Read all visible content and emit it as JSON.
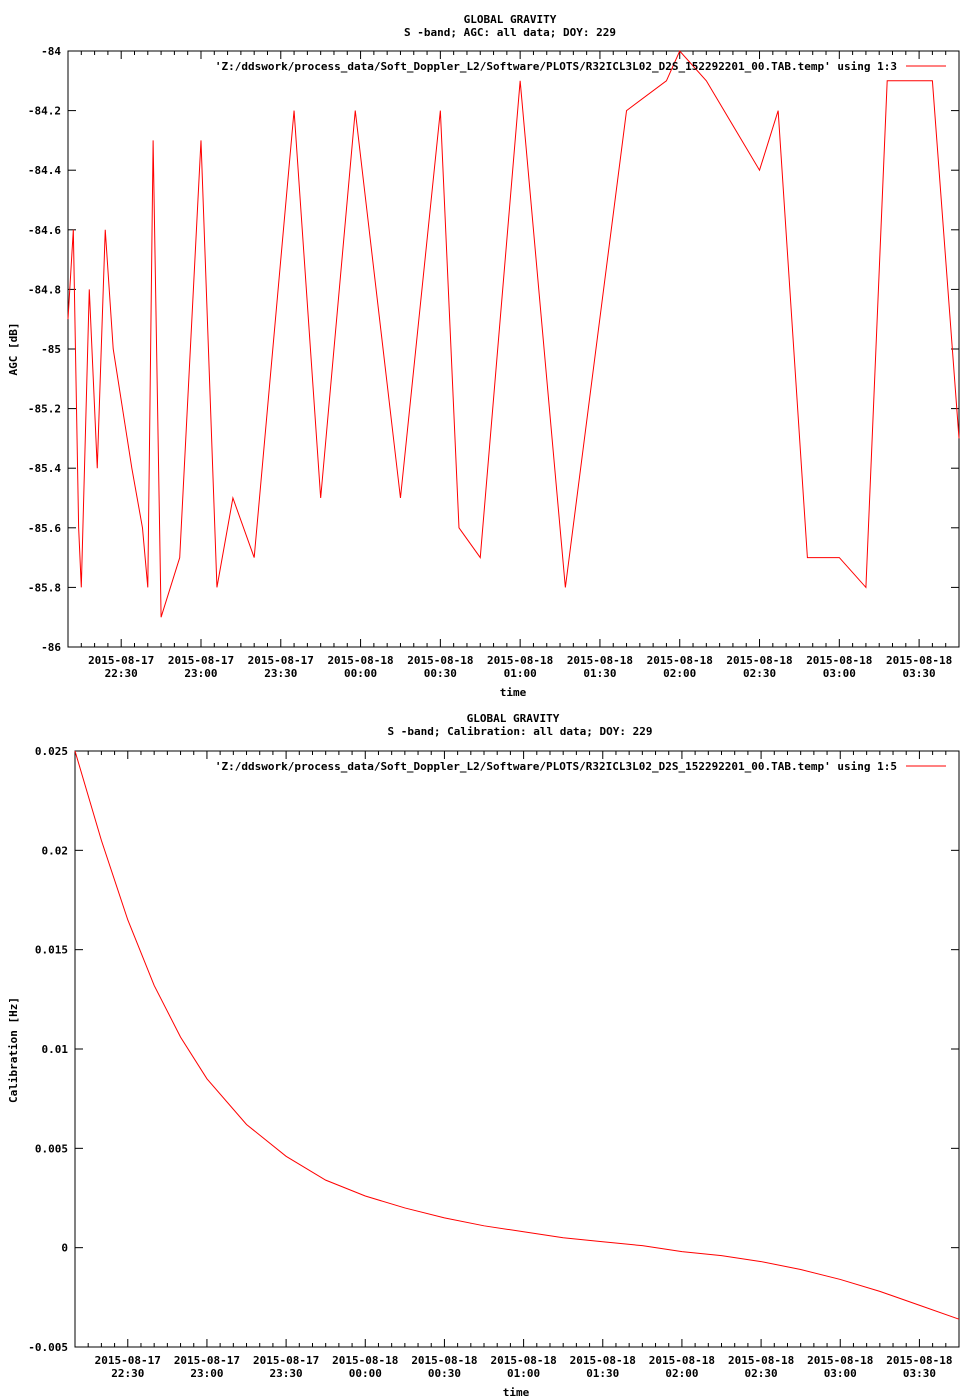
{
  "chart_data": [
    {
      "type": "line",
      "title": "GLOBAL GRAVITY",
      "subtitle": "S -band; AGC: all data; DOY: 229",
      "xlabel": "time",
      "ylabel": "AGC [dB]",
      "ylim": [
        -86,
        -84
      ],
      "xlim": [
        "2015-08-17 22:10",
        "2015-08-18 03:45"
      ],
      "grid": false,
      "legend_position": "top-right",
      "yticks": [
        {
          "value": -84,
          "label": "-84"
        },
        {
          "value": -84.2,
          "label": "-84.2"
        },
        {
          "value": -84.4,
          "label": "-84.4"
        },
        {
          "value": -84.6,
          "label": "-84.6"
        },
        {
          "value": -84.8,
          "label": "-84.8"
        },
        {
          "value": -85,
          "label": "-85"
        },
        {
          "value": -85.2,
          "label": "-85.2"
        },
        {
          "value": -85.4,
          "label": "-85.4"
        },
        {
          "value": -85.6,
          "label": "-85.6"
        },
        {
          "value": -85.8,
          "label": "-85.8"
        },
        {
          "value": -86,
          "label": "-86"
        }
      ],
      "xticks": [
        {
          "value": "2015-08-17 22:30",
          "line1": "2015-08-17",
          "line2": "22:30"
        },
        {
          "value": "2015-08-17 23:00",
          "line1": "2015-08-17",
          "line2": "23:00"
        },
        {
          "value": "2015-08-17 23:30",
          "line1": "2015-08-17",
          "line2": "23:30"
        },
        {
          "value": "2015-08-18 00:00",
          "line1": "2015-08-18",
          "line2": "00:00"
        },
        {
          "value": "2015-08-18 00:30",
          "line1": "2015-08-18",
          "line2": "00:30"
        },
        {
          "value": "2015-08-18 01:00",
          "line1": "2015-08-18",
          "line2": "01:00"
        },
        {
          "value": "2015-08-18 01:30",
          "line1": "2015-08-18",
          "line2": "01:30"
        },
        {
          "value": "2015-08-18 02:00",
          "line1": "2015-08-18",
          "line2": "02:00"
        },
        {
          "value": "2015-08-18 02:30",
          "line1": "2015-08-18",
          "line2": "02:30"
        },
        {
          "value": "2015-08-18 03:00",
          "line1": "2015-08-18",
          "line2": "03:00"
        },
        {
          "value": "2015-08-18 03:30",
          "line1": "2015-08-18",
          "line2": "03:30"
        }
      ],
      "series": [
        {
          "name": "'Z:/ddswork/process_data/Soft_Doppler_L2/Software/PLOTS/R32ICL3L02_D2S_152292201_00.TAB.temp' using 1:3",
          "color": "#ff0000",
          "points": [
            {
              "x": "2015-08-17 22:10",
              "y": -84.9
            },
            {
              "x": "2015-08-17 22:12",
              "y": -84.6
            },
            {
              "x": "2015-08-17 22:14",
              "y": -85.6
            },
            {
              "x": "2015-08-17 22:15",
              "y": -85.8
            },
            {
              "x": "2015-08-17 22:18",
              "y": -84.8
            },
            {
              "x": "2015-08-17 22:21",
              "y": -85.4
            },
            {
              "x": "2015-08-17 22:24",
              "y": -84.6
            },
            {
              "x": "2015-08-17 22:27",
              "y": -85.0
            },
            {
              "x": "2015-08-17 22:34",
              "y": -85.4
            },
            {
              "x": "2015-08-17 22:38",
              "y": -85.6
            },
            {
              "x": "2015-08-17 22:40",
              "y": -85.8
            },
            {
              "x": "2015-08-17 22:42",
              "y": -84.3
            },
            {
              "x": "2015-08-17 22:45",
              "y": -85.9
            },
            {
              "x": "2015-08-17 22:52",
              "y": -85.7
            },
            {
              "x": "2015-08-17 23:00",
              "y": -84.3
            },
            {
              "x": "2015-08-17 23:06",
              "y": -85.8
            },
            {
              "x": "2015-08-17 23:12",
              "y": -85.5
            },
            {
              "x": "2015-08-17 23:20",
              "y": -85.7
            },
            {
              "x": "2015-08-17 23:35",
              "y": -84.2
            },
            {
              "x": "2015-08-17 23:45",
              "y": -85.5
            },
            {
              "x": "2015-08-17 23:58",
              "y": -84.2
            },
            {
              "x": "2015-08-18 00:15",
              "y": -85.5
            },
            {
              "x": "2015-08-18 00:30",
              "y": -84.2
            },
            {
              "x": "2015-08-18 00:37",
              "y": -85.6
            },
            {
              "x": "2015-08-18 00:45",
              "y": -85.7
            },
            {
              "x": "2015-08-18 01:00",
              "y": -84.1
            },
            {
              "x": "2015-08-18 01:17",
              "y": -85.8
            },
            {
              "x": "2015-08-18 01:40",
              "y": -84.2
            },
            {
              "x": "2015-08-18 01:55",
              "y": -84.1
            },
            {
              "x": "2015-08-18 02:00",
              "y": -84.0
            },
            {
              "x": "2015-08-18 02:10",
              "y": -84.1
            },
            {
              "x": "2015-08-18 02:30",
              "y": -84.4
            },
            {
              "x": "2015-08-18 02:37",
              "y": -84.2
            },
            {
              "x": "2015-08-18 02:48",
              "y": -85.7
            },
            {
              "x": "2015-08-18 03:00",
              "y": -85.7
            },
            {
              "x": "2015-08-18 03:10",
              "y": -85.8
            },
            {
              "x": "2015-08-18 03:18",
              "y": -84.1
            },
            {
              "x": "2015-08-18 03:35",
              "y": -84.1
            },
            {
              "x": "2015-08-18 03:45",
              "y": -85.3
            }
          ]
        }
      ]
    },
    {
      "type": "line",
      "title": "GLOBAL GRAVITY",
      "subtitle": "S -band; Calibration: all data; DOY: 229",
      "xlabel": "time",
      "ylabel": "Calibration [Hz]",
      "ylim": [
        -0.005,
        0.025
      ],
      "xlim": [
        "2015-08-17 22:10",
        "2015-08-18 03:45"
      ],
      "grid": false,
      "legend_position": "top-right",
      "yticks": [
        {
          "value": 0.025,
          "label": "0.025"
        },
        {
          "value": 0.02,
          "label": "0.02"
        },
        {
          "value": 0.015,
          "label": "0.015"
        },
        {
          "value": 0.01,
          "label": "0.01"
        },
        {
          "value": 0.005,
          "label": "0.005"
        },
        {
          "value": 0,
          "label": "0"
        },
        {
          "value": -0.005,
          "label": "-0.005"
        }
      ],
      "xticks": [
        {
          "value": "2015-08-17 22:30",
          "line1": "2015-08-17",
          "line2": "22:30"
        },
        {
          "value": "2015-08-17 23:00",
          "line1": "2015-08-17",
          "line2": "23:00"
        },
        {
          "value": "2015-08-17 23:30",
          "line1": "2015-08-17",
          "line2": "23:30"
        },
        {
          "value": "2015-08-18 00:00",
          "line1": "2015-08-18",
          "line2": "00:00"
        },
        {
          "value": "2015-08-18 00:30",
          "line1": "2015-08-18",
          "line2": "00:30"
        },
        {
          "value": "2015-08-18 01:00",
          "line1": "2015-08-18",
          "line2": "01:00"
        },
        {
          "value": "2015-08-18 01:30",
          "line1": "2015-08-18",
          "line2": "01:30"
        },
        {
          "value": "2015-08-18 02:00",
          "line1": "2015-08-18",
          "line2": "02:00"
        },
        {
          "value": "2015-08-18 02:30",
          "line1": "2015-08-18",
          "line2": "02:30"
        },
        {
          "value": "2015-08-18 03:00",
          "line1": "2015-08-18",
          "line2": "03:00"
        },
        {
          "value": "2015-08-18 03:30",
          "line1": "2015-08-18",
          "line2": "03:30"
        }
      ],
      "series": [
        {
          "name": "'Z:/ddswork/process_data/Soft_Doppler_L2/Software/PLOTS/R32ICL3L02_D2S_152292201_00.TAB.temp' using 1:5",
          "color": "#ff0000",
          "points": [
            {
              "x": "2015-08-17 22:10",
              "y": 0.025
            },
            {
              "x": "2015-08-17 22:20",
              "y": 0.0205
            },
            {
              "x": "2015-08-17 22:30",
              "y": 0.0165
            },
            {
              "x": "2015-08-17 22:40",
              "y": 0.0132
            },
            {
              "x": "2015-08-17 22:50",
              "y": 0.0106
            },
            {
              "x": "2015-08-17 23:00",
              "y": 0.0085
            },
            {
              "x": "2015-08-17 23:15",
              "y": 0.0062
            },
            {
              "x": "2015-08-17 23:30",
              "y": 0.0046
            },
            {
              "x": "2015-08-17 23:45",
              "y": 0.0034
            },
            {
              "x": "2015-08-18 00:00",
              "y": 0.0026
            },
            {
              "x": "2015-08-18 00:15",
              "y": 0.002
            },
            {
              "x": "2015-08-18 00:30",
              "y": 0.0015
            },
            {
              "x": "2015-08-18 00:45",
              "y": 0.0011
            },
            {
              "x": "2015-08-18 01:00",
              "y": 0.0008
            },
            {
              "x": "2015-08-18 01:15",
              "y": 0.0005
            },
            {
              "x": "2015-08-18 01:30",
              "y": 0.0003
            },
            {
              "x": "2015-08-18 01:45",
              "y": 0.0001
            },
            {
              "x": "2015-08-18 02:00",
              "y": -0.0002
            },
            {
              "x": "2015-08-18 02:15",
              "y": -0.0004
            },
            {
              "x": "2015-08-18 02:30",
              "y": -0.0007
            },
            {
              "x": "2015-08-18 02:45",
              "y": -0.0011
            },
            {
              "x": "2015-08-18 03:00",
              "y": -0.0016
            },
            {
              "x": "2015-08-18 03:15",
              "y": -0.0022
            },
            {
              "x": "2015-08-18 03:30",
              "y": -0.0029
            },
            {
              "x": "2015-08-18 03:45",
              "y": -0.0036
            }
          ]
        }
      ]
    }
  ]
}
